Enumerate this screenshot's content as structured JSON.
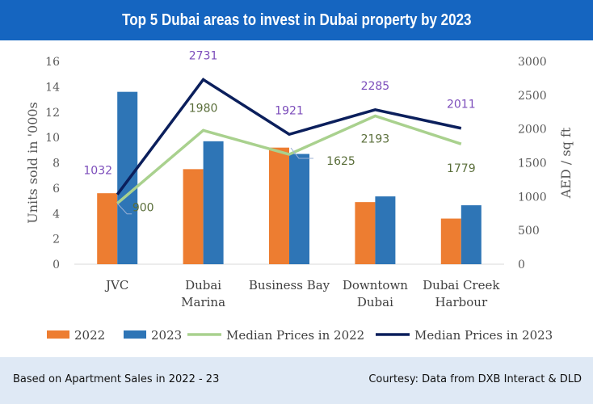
{
  "chart_data": {
    "type": "bar",
    "title": "Top 5 Dubai areas to invest in Dubai property by 2023",
    "categories": [
      [
        "JVC"
      ],
      [
        "Dubai",
        "Marina"
      ],
      [
        "Business Bay"
      ],
      [
        "Downtown",
        "Dubai"
      ],
      [
        "Dubai Creek",
        "Harbour"
      ]
    ],
    "ylabel": "Units sold in '000s",
    "ylabel_right": "AED / sq ft",
    "ylim": [
      0,
      16
    ],
    "ylim_right": [
      0,
      3000
    ],
    "yticks": [
      "0",
      "2",
      "4",
      "6",
      "8",
      "10",
      "12",
      "14",
      "16"
    ],
    "yticks_right": [
      "0",
      "500",
      "1000",
      "1500",
      "2000",
      "2500",
      "3000"
    ],
    "bar_series": [
      {
        "name": "2022",
        "color": "#ed7d31",
        "values": [
          5.6,
          7.5,
          9.2,
          4.9,
          3.6
        ]
      },
      {
        "name": "2023",
        "color": "#2e75b6",
        "values": [
          13.6,
          9.7,
          8.7,
          5.35,
          4.65
        ]
      }
    ],
    "line_series": [
      {
        "name": "Median Prices in 2022",
        "color": "#a9d18e",
        "label_color": "#5a6e3a",
        "values": [
          900,
          1980,
          1625,
          2193,
          1779
        ],
        "labels": [
          "900",
          "1980",
          "1625",
          "2193",
          "1779"
        ]
      },
      {
        "name": "Median Prices in 2023",
        "color": "#0b1f5c",
        "label_color": "#7c4dbb",
        "values": [
          1032,
          2731,
          1921,
          2285,
          2011
        ],
        "labels": [
          "1032",
          "2731",
          "1921",
          "2285",
          "2011"
        ]
      }
    ],
    "legend": "bottom",
    "grid": false
  },
  "footer": {
    "left": "Based on Apartment Sales in 2022 - 23",
    "right": "Courtesy: Data from DXB Interact & DLD"
  }
}
